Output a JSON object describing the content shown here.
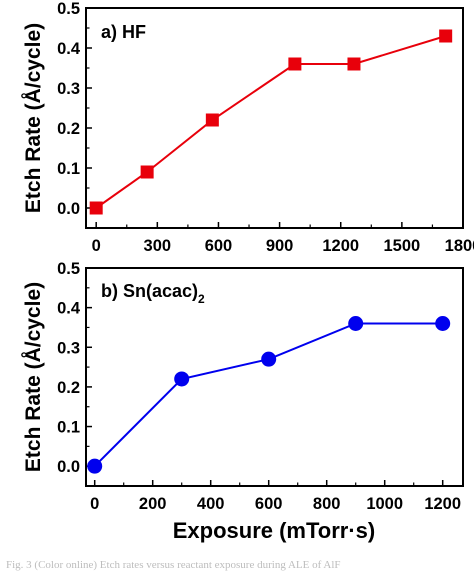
{
  "chart_data": [
    {
      "type": "line",
      "title": "a) HF",
      "ylabel": "Etch Rate (Å/cycle)",
      "xlabel": "",
      "xlim": [
        -50,
        1800
      ],
      "ylim": [
        -0.05,
        0.5
      ],
      "x_ticks": [
        "0",
        "300",
        "600",
        "900",
        "1200",
        "1500",
        "1800"
      ],
      "x_tick_values": [
        0,
        300,
        600,
        900,
        1200,
        1500,
        1800
      ],
      "y_ticks": [
        "0.0",
        "0.1",
        "0.2",
        "0.3",
        "0.4",
        "0.5"
      ],
      "y_tick_values": [
        0,
        0.1,
        0.2,
        0.3,
        0.4,
        0.5
      ],
      "series": [
        {
          "color": "#e8000b",
          "marker": "square",
          "x": [
            0,
            250,
            570,
            975,
            1265,
            1715
          ],
          "y": [
            0.0,
            0.09,
            0.22,
            0.36,
            0.36,
            0.43
          ]
        }
      ]
    },
    {
      "type": "line",
      "title": "b) Sn(acac)",
      "title_subscript": "2",
      "ylabel": "Etch Rate (Å/cycle)",
      "xlabel": "Exposure (mTorr·s)",
      "xlim": [
        -30,
        1270
      ],
      "ylim": [
        -0.05,
        0.5
      ],
      "x_ticks": [
        "0",
        "200",
        "400",
        "600",
        "800",
        "1000",
        "1200"
      ],
      "x_tick_values": [
        0,
        200,
        400,
        600,
        800,
        1000,
        1200
      ],
      "y_ticks": [
        "0.0",
        "0.1",
        "0.2",
        "0.3",
        "0.4",
        "0.5"
      ],
      "y_tick_values": [
        0,
        0.1,
        0.2,
        0.3,
        0.4,
        0.5
      ],
      "series": [
        {
          "color": "#0000ee",
          "marker": "circle",
          "x": [
            0,
            300,
            600,
            900,
            1200
          ],
          "y": [
            0.0,
            0.22,
            0.27,
            0.36,
            0.36
          ]
        }
      ]
    }
  ],
  "caption": "Fig. 3  (Color online) Etch rates versus reactant exposure during ALE of AlF"
}
